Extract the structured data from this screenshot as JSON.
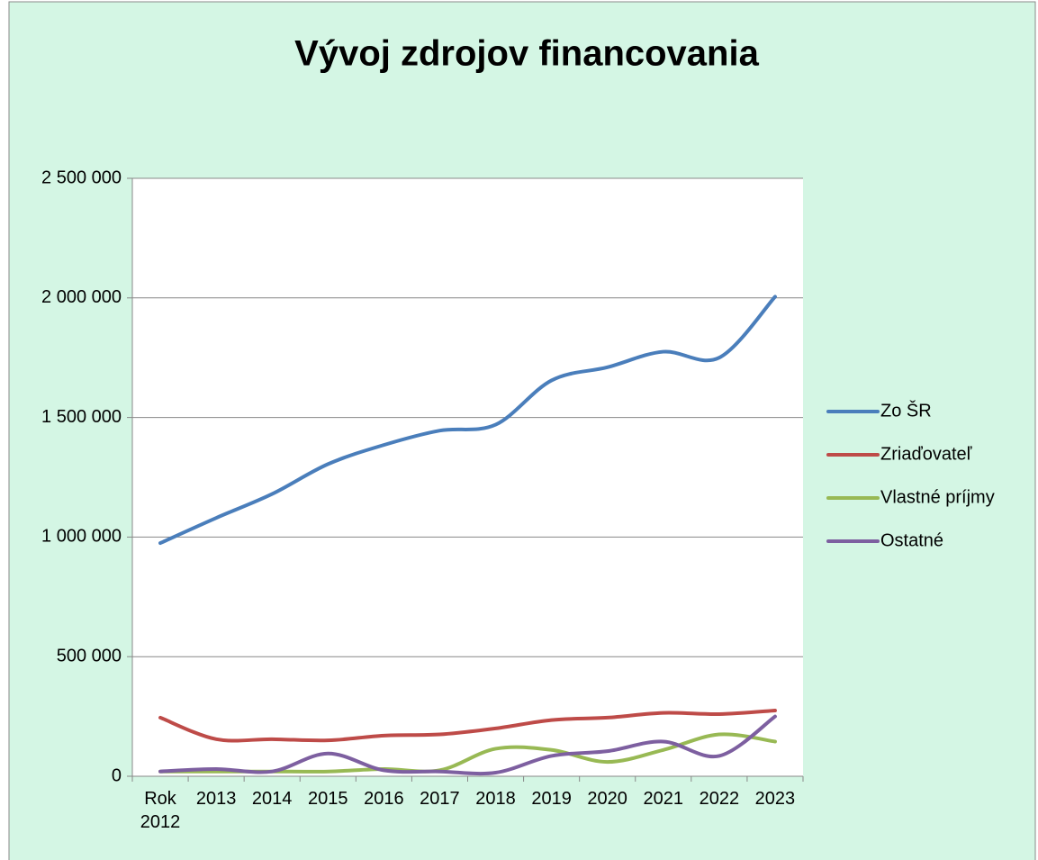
{
  "chart_data": {
    "type": "line",
    "title": "Vývoj zdrojov financovania",
    "categories": [
      "Rok 2012",
      "2013",
      "2014",
      "2015",
      "2016",
      "2017",
      "2018",
      "2019",
      "2020",
      "2021",
      "2022",
      "2023"
    ],
    "series": [
      {
        "name": "Zo ŠR",
        "color": "#4a7ebb",
        "values": [
          975000,
          1080000,
          1180000,
          1305000,
          1385000,
          1445000,
          1470000,
          1655000,
          1710000,
          1775000,
          1750000,
          2005000
        ]
      },
      {
        "name": "Zriaďovateľ",
        "color": "#be4b48",
        "values": [
          245000,
          155000,
          155000,
          150000,
          170000,
          175000,
          200000,
          235000,
          245000,
          265000,
          260000,
          275000
        ]
      },
      {
        "name": "Vlastné príjmy",
        "color": "#98b954",
        "values": [
          20000,
          20000,
          20000,
          20000,
          30000,
          25000,
          115000,
          110000,
          60000,
          110000,
          175000,
          145000
        ]
      },
      {
        "name": "Ostatné",
        "color": "#7d5fa0",
        "values": [
          20000,
          30000,
          20000,
          95000,
          25000,
          20000,
          15000,
          85000,
          105000,
          145000,
          85000,
          250000
        ]
      }
    ],
    "ylim": [
      0,
      2500000
    ],
    "yticks": [
      0,
      {
        "value": 500000,
        "label": "500 000"
      },
      {
        "value": 1000000,
        "label": "1 000 000"
      },
      {
        "value": 1500000,
        "label": "1 500 000"
      },
      {
        "value": 2000000,
        "label": "2 000 000"
      },
      {
        "value": 2500000,
        "label": "2 500 000"
      }
    ],
    "grid": true,
    "smooth": true,
    "legend": "right"
  }
}
